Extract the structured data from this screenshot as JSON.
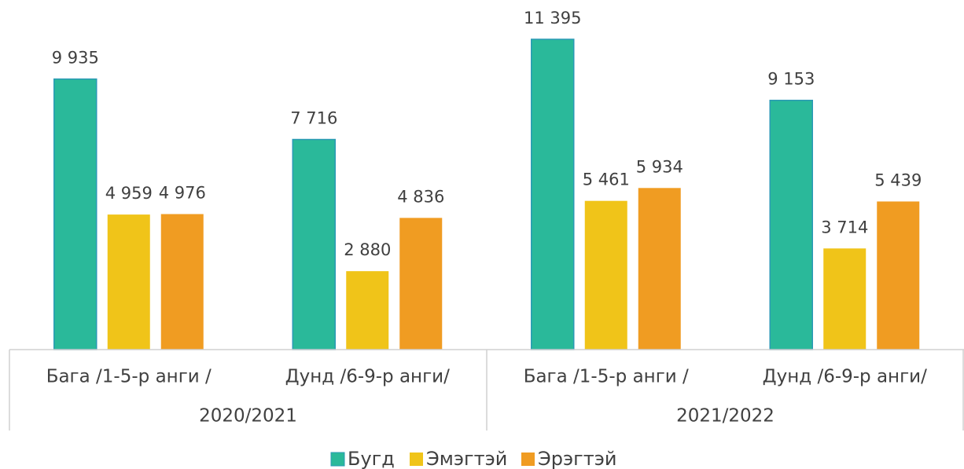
{
  "chart_data": {
    "type": "bar",
    "categories": [
      "Бага  /1-5-р анги /",
      "Дунд /6-9-р анги/",
      "Бага  /1-5-р анги /",
      "Дунд /6-9-р анги/"
    ],
    "group_labels": [
      "2020/2021",
      "2021/2022"
    ],
    "series": [
      {
        "name": "Бугд",
        "color": "#2ab99a",
        "values": [
          9935,
          7716,
          11395,
          9153
        ],
        "value_labels": [
          "9 935",
          "7 716",
          "11 395",
          "9 153"
        ]
      },
      {
        "name": "Эмэгтэй",
        "color": "#f0c419",
        "values": [
          4959,
          2880,
          5461,
          3714
        ],
        "value_labels": [
          "4 959",
          "2 880",
          "5 461",
          "3 714"
        ]
      },
      {
        "name": "Эрэгтэй",
        "color": "#f09c22",
        "values": [
          4976,
          4836,
          5934,
          5439
        ],
        "value_labels": [
          "4 976",
          "4 836",
          "5 934",
          "5 439"
        ]
      }
    ],
    "ylim": [
      0,
      11400
    ],
    "grid": false,
    "legend": "bottom"
  }
}
